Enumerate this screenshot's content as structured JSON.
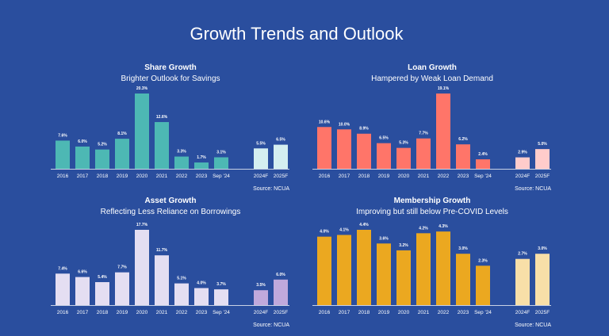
{
  "title": "Growth Trends and Outlook",
  "chart_data": [
    {
      "type": "bar",
      "title": "Share Growth",
      "subtitle": "Brighter Outlook for Savings",
      "source": "Source: NCUA",
      "categories": [
        "2016",
        "2017",
        "2018",
        "2019",
        "2020",
        "2021",
        "2022",
        "2023",
        "Sep '24",
        "2024F",
        "2025F"
      ],
      "values": [
        7.6,
        6.0,
        5.2,
        8.1,
        20.3,
        12.6,
        3.3,
        1.7,
        3.1,
        5.5,
        6.5
      ],
      "labels": [
        "7.6%",
        "6.0%",
        "5.2%",
        "8.1%",
        "20.3%",
        "12.6%",
        "3.3%",
        "1.7%",
        "3.1%",
        "5.5%",
        "6.5%"
      ],
      "forecast": [
        false,
        false,
        false,
        false,
        false,
        false,
        false,
        false,
        false,
        true,
        true
      ],
      "color": "#4DB8B4",
      "forecast_color": "#D4EEF0"
    },
    {
      "type": "bar",
      "title": "Loan Growth",
      "subtitle": "Hampered by Weak Loan Demand",
      "source": "Source: NCUA",
      "categories": [
        "2016",
        "2017",
        "2018",
        "2019",
        "2020",
        "2021",
        "2022",
        "2023",
        "Sep '24",
        "2024F",
        "2025F"
      ],
      "values": [
        10.6,
        10.0,
        8.9,
        6.5,
        5.3,
        7.7,
        19.1,
        6.2,
        2.4,
        2.9,
        5.0
      ],
      "labels": [
        "10.6%",
        "10.0%",
        "8.9%",
        "6.5%",
        "5.3%",
        "7.7%",
        "19.1%",
        "6.2%",
        "2.4%",
        "2.9%",
        "5.0%"
      ],
      "forecast": [
        false,
        false,
        false,
        false,
        false,
        false,
        false,
        false,
        false,
        true,
        true
      ],
      "color": "#FF7569",
      "forecast_color": "#FFCCCB"
    },
    {
      "type": "bar",
      "title": "Asset Growth",
      "subtitle": "Reflecting Less Reliance on Borrowings",
      "source": "Source: NCUA",
      "categories": [
        "2016",
        "2017",
        "2018",
        "2019",
        "2020",
        "2021",
        "2022",
        "2023",
        "Sep '24",
        "2024F",
        "2025F"
      ],
      "values": [
        7.4,
        6.6,
        5.4,
        7.7,
        17.7,
        11.7,
        5.1,
        4.0,
        3.7,
        3.5,
        6.0
      ],
      "labels": [
        "7.4%",
        "6.6%",
        "5.4%",
        "7.7%",
        "17.7%",
        "11.7%",
        "5.1%",
        "4.0%",
        "3.7%",
        "3.5%",
        "6.0%"
      ],
      "forecast": [
        false,
        false,
        false,
        false,
        false,
        false,
        false,
        false,
        false,
        true,
        true
      ],
      "color": "#E4DEF2",
      "forecast_color": "#C0A9DC"
    },
    {
      "type": "bar",
      "title": "Membership Growth",
      "subtitle": "Improving but still below Pre-COVID Levels",
      "source": "Source: NCUA",
      "categories": [
        "2016",
        "2017",
        "2018",
        "2019",
        "2020",
        "2021",
        "2022",
        "2023",
        "Sep '24",
        "2024F",
        "2025F"
      ],
      "values": [
        4.0,
        4.1,
        4.4,
        3.6,
        3.2,
        4.2,
        4.3,
        3.0,
        2.3,
        2.7,
        3.0
      ],
      "labels": [
        "4.0%",
        "4.1%",
        "4.4%",
        "3.6%",
        "3.2%",
        "4.2%",
        "4.3%",
        "3.0%",
        "2.3%",
        "2.7%",
        "3.0%"
      ],
      "forecast": [
        false,
        false,
        false,
        false,
        false,
        false,
        false,
        false,
        false,
        true,
        true
      ],
      "color": "#EBA820",
      "forecast_color": "#F8DFA8"
    }
  ]
}
